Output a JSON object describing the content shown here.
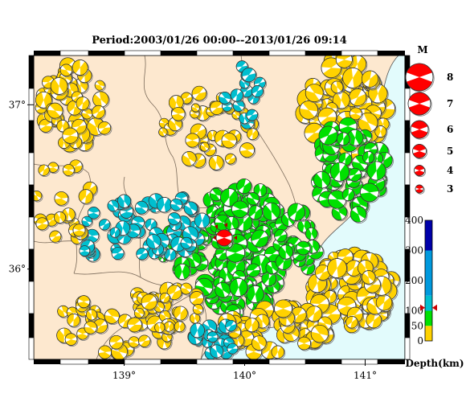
{
  "title": "Period:2003/01/26 00:00--2013/01/26 09:14",
  "map": {
    "lon_range": [
      138.25,
      141.33
    ],
    "lat_range": [
      35.45,
      37.3
    ],
    "lon_ticks": [
      "139°",
      "140°",
      "141°"
    ],
    "lat_ticks": [
      "37°",
      "36°"
    ],
    "land_color": "#fde8cf",
    "sea_color": "#e2fbfc",
    "boundary_color": "#7a6a5a"
  },
  "magnitude_legend": {
    "title": "M",
    "items": [
      "8",
      "7",
      "6",
      "5",
      "4",
      "3"
    ],
    "color": "#ff0000"
  },
  "depth_scale": {
    "label": "Depth(km)",
    "ticks": [
      "400",
      "300",
      "200",
      "100",
      "50",
      "0"
    ],
    "bands": [
      {
        "from": 0,
        "to": 50,
        "color": "#ffd200"
      },
      {
        "from": 50,
        "to": 100,
        "color": "#00e000"
      },
      {
        "from": 100,
        "to": 150,
        "color": "#00bfcf"
      },
      {
        "from": 150,
        "to": 300,
        "color": "#0099dd"
      },
      {
        "from": 300,
        "to": 400,
        "color": "#0000aa"
      }
    ],
    "main_event_depth": 110
  },
  "main_event": {
    "lon": 139.83,
    "lat": 36.19,
    "color": "#ff0000"
  }
}
